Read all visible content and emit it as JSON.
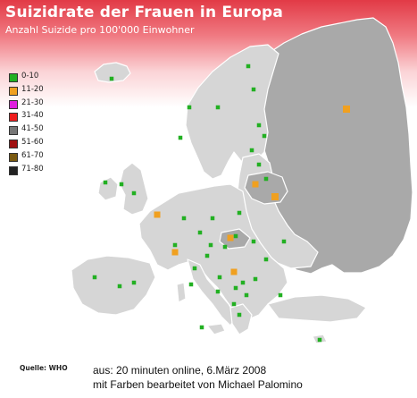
{
  "map": {
    "title": "Suizidrate der Frauen in Europa",
    "subtitle": "Anzahl Suizide pro 100'000 Einwohner"
  },
  "legend": [
    {
      "label": "0-10",
      "color": "#22b022"
    },
    {
      "label": "11-20",
      "color": "#f0a020"
    },
    {
      "label": "21-30",
      "color": "#e020e0"
    },
    {
      "label": "31-40",
      "color": "#ee1c1c"
    },
    {
      "label": "41-50",
      "color": "#777777"
    },
    {
      "label": "51-60",
      "color": "#a01010"
    },
    {
      "label": "61-70",
      "color": "#7a5a10"
    },
    {
      "label": "71-80",
      "color": "#222222"
    }
  ],
  "colors": {
    "land": "#d6d6d6",
    "land_dark": "#a9a9a9",
    "border": "#ffffff",
    "header_red": "#e23a46"
  },
  "markers_by_category": {
    "0-10": 42,
    "11-20": 7
  },
  "footer": {
    "source": "Quelle: WHO",
    "credit_line1": "aus: 20 minuten online, 6.März 2008",
    "credit_line2": "mit Farben bearbeitet von Michael Palomino"
  }
}
